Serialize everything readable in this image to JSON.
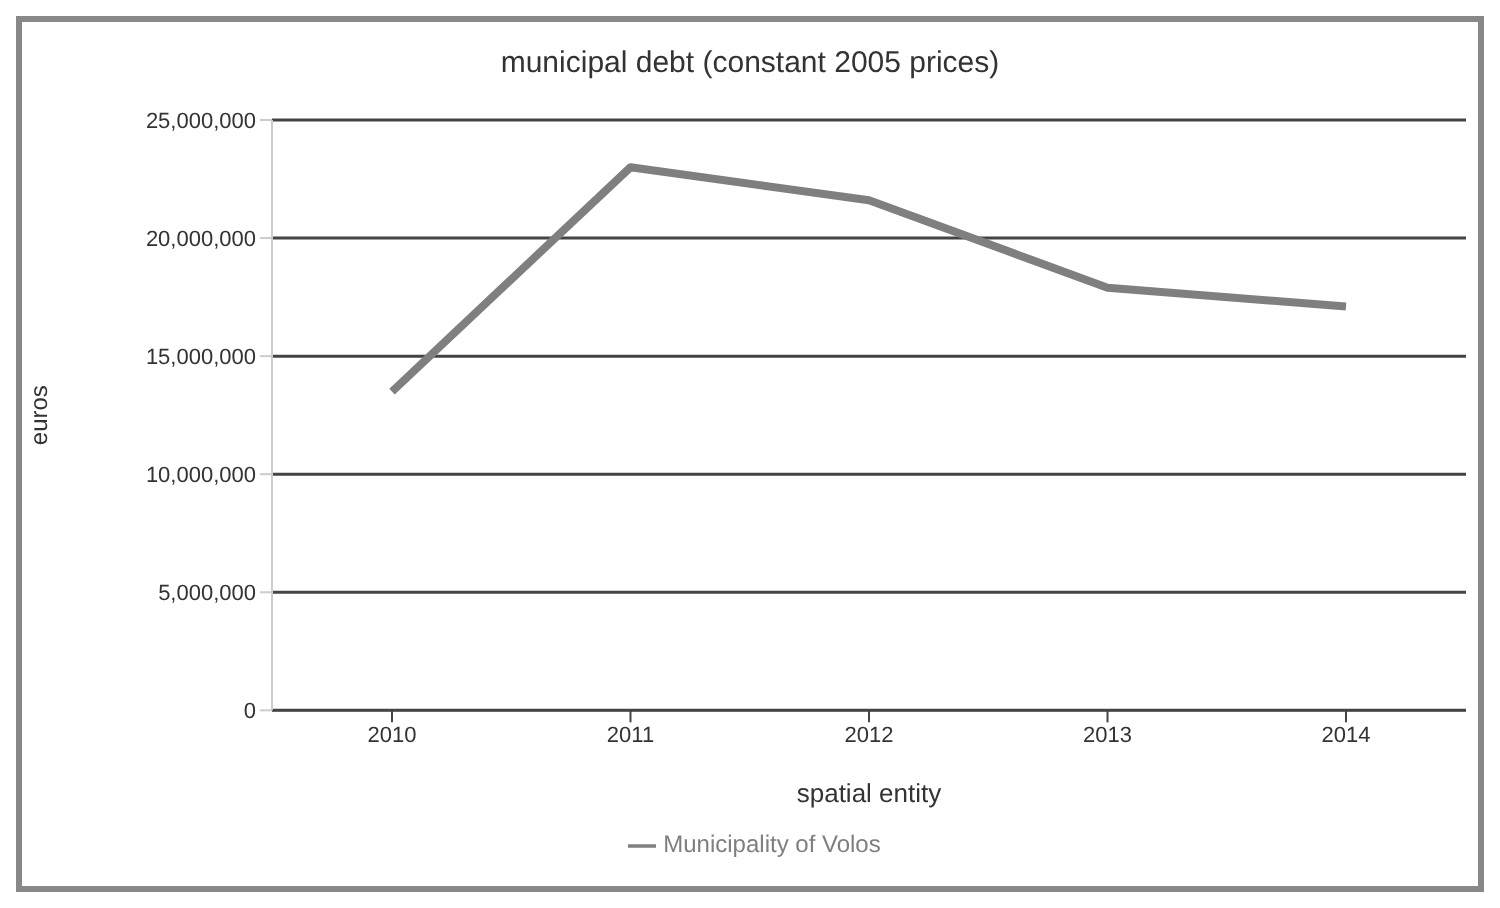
{
  "chart_data": {
    "type": "line",
    "title": "municipal debt (constant 2005 prices)",
    "xlabel": "spatial entity",
    "ylabel": "euros",
    "categories": [
      "2010",
      "2011",
      "2012",
      "2013",
      "2014"
    ],
    "series": [
      {
        "name": "Municipality of Volos",
        "color": "#7f7f7f",
        "values": [
          13500000,
          23000000,
          21600000,
          17900000,
          17100000
        ]
      }
    ],
    "ylim": [
      0,
      25000000
    ],
    "yticks": [
      {
        "value": 0,
        "label": "0"
      },
      {
        "value": 5000000,
        "label": "5,000,000"
      },
      {
        "value": 10000000,
        "label": "10,000,000"
      },
      {
        "value": 15000000,
        "label": "15,000,000"
      },
      {
        "value": 20000000,
        "label": "20,000,000"
      },
      {
        "value": 25000000,
        "label": "25,000,000"
      }
    ],
    "grid": "y",
    "legend": "bottom",
    "marker": "none",
    "line_style": "solid"
  }
}
